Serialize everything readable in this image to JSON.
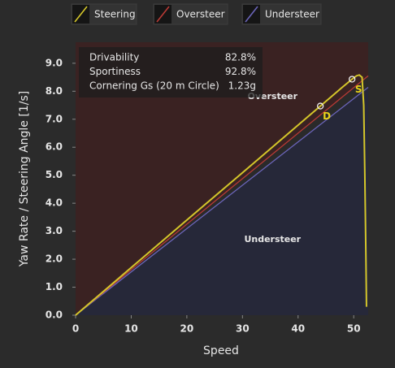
{
  "chart_data": {
    "type": "line",
    "xlabel": "Speed",
    "ylabel": "Yaw Rate / Steering Angle [1/s]",
    "xlim": [
      0,
      52.6
    ],
    "ylim": [
      0,
      9.75
    ],
    "xticks": [
      0,
      10,
      20,
      30,
      40,
      50
    ],
    "yticks": [
      {
        "value": 0,
        "label": "0.0"
      },
      {
        "value": 1,
        "label": "1.0"
      },
      {
        "value": 2,
        "label": "2.0"
      },
      {
        "value": 3,
        "label": "3.0"
      },
      {
        "value": 4,
        "label": "4.0"
      },
      {
        "value": 5,
        "label": "5.0"
      },
      {
        "value": 6,
        "label": "6.0"
      },
      {
        "value": 7,
        "label": "7.0"
      },
      {
        "value": 8,
        "label": "8.0"
      },
      {
        "value": 9,
        "label": "9.0"
      }
    ],
    "series": [
      {
        "name": "Steering",
        "color": "#d4c62a",
        "x": [
          0,
          10,
          20,
          30,
          40,
          44,
          48,
          49.7,
          50.5,
          51,
          51.5,
          51.8,
          52,
          52.2,
          52.3
        ],
        "values": [
          0,
          1.7,
          3.4,
          5.09,
          6.79,
          7.47,
          8.15,
          8.43,
          8.55,
          8.58,
          8.5,
          7.5,
          5,
          2,
          0.3
        ]
      },
      {
        "name": "Oversteer",
        "color": "#b83a35",
        "x": [
          0,
          52.6
        ],
        "values": [
          0,
          8.55
        ]
      },
      {
        "name": "Understeer",
        "color": "#6a64b8",
        "x": [
          0,
          52.6
        ],
        "values": [
          0,
          8.14
        ]
      }
    ],
    "markers": [
      {
        "label": "D",
        "x": 44,
        "y": 7.47
      },
      {
        "label": "S",
        "x": 49.7,
        "y": 8.43
      }
    ],
    "annotations": [
      {
        "text": "Oversteer",
        "x": 35.4,
        "y": 7.8
      },
      {
        "text": "Understeer",
        "x": 35.4,
        "y": 2.7
      }
    ],
    "info": [
      [
        "Drivability",
        "82.8%"
      ],
      [
        "Sportiness",
        "92.8%"
      ],
      [
        "Cornering Gs (20 m Circle)",
        "1.23g"
      ]
    ]
  }
}
